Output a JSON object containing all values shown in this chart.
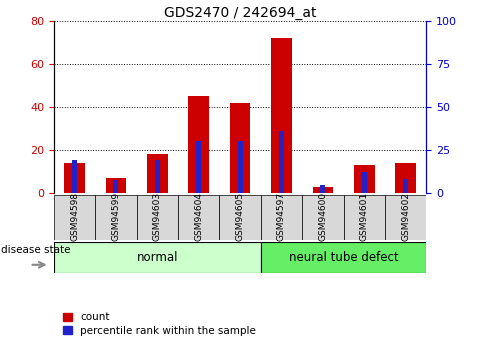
{
  "title": "GDS2470 / 242694_at",
  "categories": [
    "GSM94598",
    "GSM94599",
    "GSM94603",
    "GSM94604",
    "GSM94605",
    "GSM94597",
    "GSM94600",
    "GSM94601",
    "GSM94602"
  ],
  "red_values": [
    14,
    7,
    18,
    45,
    42,
    72,
    3,
    13,
    14
  ],
  "blue_values_pct": [
    19,
    7.5,
    19,
    30,
    30,
    36,
    5,
    12.5,
    8
  ],
  "group1_label": "normal",
  "group2_label": "neural tube defect",
  "group1_count": 5,
  "group2_count": 4,
  "left_ylim": [
    0,
    80
  ],
  "right_ylim": [
    0,
    100
  ],
  "left_yticks": [
    0,
    20,
    40,
    60,
    80
  ],
  "right_yticks": [
    0,
    25,
    50,
    75,
    100
  ],
  "left_tick_color": "#cc0000",
  "right_tick_color": "#0000cc",
  "red_bar_width": 0.5,
  "blue_bar_width": 0.12,
  "red_color": "#cc0000",
  "blue_color": "#2222cc",
  "group_bg_normal": "#ccffcc",
  "group_bg_defect": "#66ee66",
  "tick_bg_color": "#d8d8d8",
  "grid_color": "#000000",
  "title_fontsize": 10,
  "legend_label_count": "count",
  "legend_label_pct": "percentile rank within the sample",
  "disease_state_label": "disease state"
}
